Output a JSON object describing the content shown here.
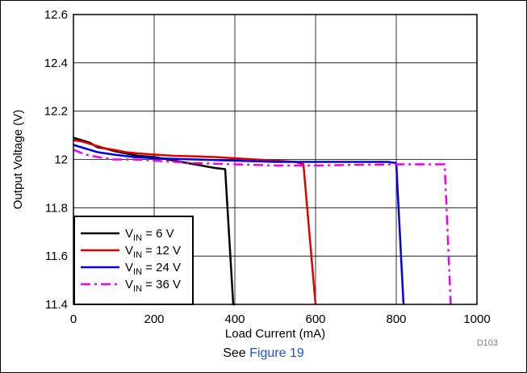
{
  "chart_data": {
    "type": "line",
    "xlabel": "Load Current (mA)",
    "ylabel": "Output Voltage (V)",
    "xlim": [
      0,
      1000
    ],
    "ylim": [
      11.4,
      12.6
    ],
    "x_ticks": [
      "0",
      "200",
      "400",
      "600",
      "800",
      "1000"
    ],
    "y_ticks": [
      "12.6",
      "12.4",
      "12.2",
      "12",
      "11.8",
      "11.6",
      "11.4"
    ],
    "grid": true,
    "legend_position": "bottom-left",
    "figure_ref": "D103",
    "series": [
      {
        "name": "VIN = 6 V",
        "name_parts": {
          "base": "V",
          "sub": "IN",
          "rest": " = 6 V"
        },
        "color": "#000000",
        "dash": "solid",
        "x": [
          0,
          20,
          40,
          60,
          80,
          100,
          130,
          160,
          200,
          250,
          300,
          350,
          376,
          396,
          400
        ],
        "y": [
          12.09,
          12.08,
          12.07,
          12.05,
          12.045,
          12.035,
          12.025,
          12.015,
          12.01,
          11.995,
          11.98,
          11.965,
          11.96,
          11.4,
          11.4
        ]
      },
      {
        "name": "VIN = 12 V",
        "name_parts": {
          "base": "V",
          "sub": "IN",
          "rest": " = 12 V"
        },
        "color": "#e00000",
        "dash": "solid",
        "x": [
          0,
          20,
          40,
          60,
          80,
          100,
          130,
          160,
          200,
          250,
          300,
          350,
          400,
          450,
          500,
          550,
          570,
          600
        ],
        "y": [
          12.08,
          12.075,
          12.065,
          12.055,
          12.045,
          12.04,
          12.03,
          12.025,
          12.02,
          12.015,
          12.013,
          12.01,
          12.005,
          12.0,
          11.995,
          11.99,
          11.98,
          11.4
        ]
      },
      {
        "name": "VIN = 24 V",
        "name_parts": {
          "base": "V",
          "sub": "IN",
          "rest": " = 24 V"
        },
        "color": "#0000e0",
        "dash": "solid",
        "x": [
          0,
          20,
          40,
          60,
          80,
          100,
          150,
          200,
          300,
          400,
          500,
          600,
          700,
          780,
          800,
          818
        ],
        "y": [
          12.06,
          12.05,
          12.04,
          12.03,
          12.025,
          12.02,
          12.01,
          12.005,
          12.0,
          11.995,
          11.99,
          11.99,
          11.99,
          11.99,
          11.985,
          11.4
        ]
      },
      {
        "name": "VIN = 36 V",
        "name_parts": {
          "base": "V",
          "sub": "IN",
          "rest": " = 36 V"
        },
        "color": "#ee00ee",
        "dash": "dashed",
        "x": [
          0,
          30,
          60,
          100,
          150,
          200,
          300,
          400,
          500,
          600,
          700,
          800,
          900,
          920,
          935
        ],
        "y": [
          12.04,
          12.02,
          12.01,
          12.0,
          12.0,
          11.995,
          11.985,
          11.98,
          11.975,
          11.975,
          11.978,
          11.98,
          11.98,
          11.98,
          11.4
        ]
      }
    ]
  },
  "caption": {
    "prefix": "See ",
    "link_text": "Figure 19"
  }
}
